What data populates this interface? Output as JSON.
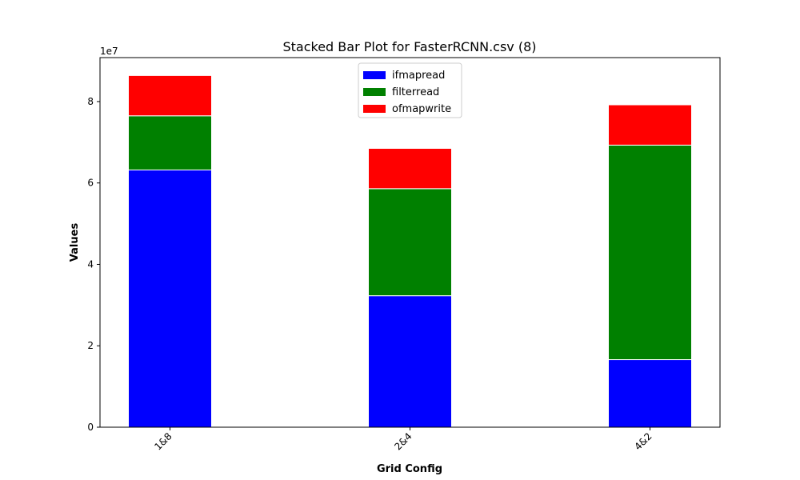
{
  "chart_data": {
    "type": "bar",
    "stacked": true,
    "title": "Stacked Bar Plot for FasterRCNN.csv (8)",
    "xlabel": "Grid Config",
    "ylabel": "Values",
    "y_offset_label": "1e7",
    "y_scale": 10000000,
    "ylim": [
      0,
      9.08
    ],
    "y_ticks": [
      0,
      2,
      4,
      6,
      8
    ],
    "categories": [
      "1&8",
      "2&4",
      "4&2"
    ],
    "series": [
      {
        "name": "ifmapread",
        "color": "#0000ff",
        "values": [
          6.32,
          3.23,
          1.66
        ]
      },
      {
        "name": "filterread",
        "color": "#008000",
        "values": [
          1.33,
          2.63,
          5.27
        ]
      },
      {
        "name": "ofmapwrite",
        "color": "#ff0000",
        "values": [
          0.99,
          0.99,
          0.99
        ]
      }
    ],
    "legend_position": "top-center",
    "grid": false
  }
}
